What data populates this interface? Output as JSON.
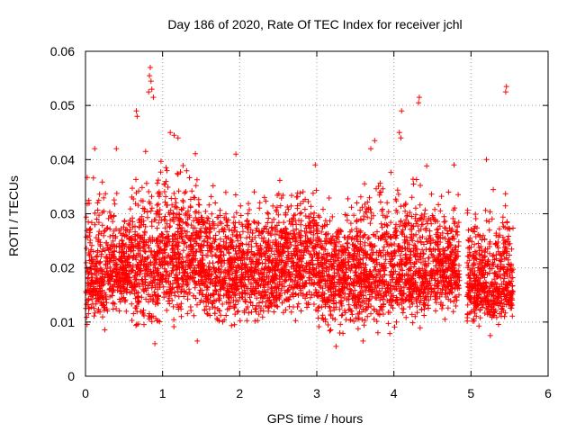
{
  "chart_data": {
    "type": "scatter",
    "title": "Day 186 of 2020, Rate Of TEC Index for receiver jchl",
    "xlabel": "GPS time / hours",
    "ylabel": "ROTI / TECUs",
    "xlim": [
      0,
      6
    ],
    "ylim": [
      0,
      0.06
    ],
    "x_ticks": [
      "0",
      "1",
      "2",
      "3",
      "4",
      "5",
      "6"
    ],
    "y_ticks": [
      "0",
      "0.01",
      "0.02",
      "0.03",
      "0.04",
      "0.05",
      "0.06"
    ],
    "grid": true,
    "marker": "+",
    "color": "#ff0000",
    "data_range_hours": [
      0.0,
      5.55
    ],
    "series": [
      {
        "name": "ROTI",
        "bands": [
          {
            "x": [
              0.0,
              0.25
            ],
            "low": 0.007,
            "high": 0.039,
            "center": 0.018
          },
          {
            "x": [
              0.25,
              0.6
            ],
            "low": 0.01,
            "high": 0.036,
            "center": 0.02
          },
          {
            "x": [
              0.6,
              0.95
            ],
            "low": 0.006,
            "high": 0.04,
            "center": 0.021
          },
          {
            "x": [
              0.95,
              1.5
            ],
            "low": 0.008,
            "high": 0.043,
            "center": 0.022
          },
          {
            "x": [
              1.5,
              2.0
            ],
            "low": 0.007,
            "high": 0.037,
            "center": 0.02
          },
          {
            "x": [
              2.0,
              2.5
            ],
            "low": 0.007,
            "high": 0.037,
            "center": 0.02
          },
          {
            "x": [
              2.5,
              3.0
            ],
            "low": 0.009,
            "high": 0.038,
            "center": 0.021
          },
          {
            "x": [
              3.0,
              3.5
            ],
            "low": 0.006,
            "high": 0.035,
            "center": 0.019
          },
          {
            "x": [
              3.5,
              4.0
            ],
            "low": 0.006,
            "high": 0.041,
            "center": 0.019
          },
          {
            "x": [
              4.0,
              4.5
            ],
            "low": 0.008,
            "high": 0.04,
            "center": 0.019
          },
          {
            "x": [
              4.5,
              4.85
            ],
            "low": 0.009,
            "high": 0.037,
            "center": 0.02
          },
          {
            "x": [
              4.95,
              5.55
            ],
            "low": 0.007,
            "high": 0.036,
            "center": 0.017
          }
        ],
        "highlights": [
          {
            "x": 0.84,
            "y": 0.057
          },
          {
            "x": 0.83,
            "y": 0.0555
          },
          {
            "x": 0.85,
            "y": 0.0545
          },
          {
            "x": 0.86,
            "y": 0.053
          },
          {
            "x": 0.88,
            "y": 0.0515
          },
          {
            "x": 0.82,
            "y": 0.0525
          },
          {
            "x": 0.66,
            "y": 0.049
          },
          {
            "x": 0.67,
            "y": 0.048
          },
          {
            "x": 0.12,
            "y": 0.042
          },
          {
            "x": 0.4,
            "y": 0.042
          },
          {
            "x": 0.78,
            "y": 0.0415
          },
          {
            "x": 1.1,
            "y": 0.045
          },
          {
            "x": 1.15,
            "y": 0.0445
          },
          {
            "x": 1.2,
            "y": 0.044
          },
          {
            "x": 1.95,
            "y": 0.041
          },
          {
            "x": 2.98,
            "y": 0.039
          },
          {
            "x": 3.75,
            "y": 0.0435
          },
          {
            "x": 3.7,
            "y": 0.042
          },
          {
            "x": 4.1,
            "y": 0.049
          },
          {
            "x": 4.07,
            "y": 0.045
          },
          {
            "x": 4.09,
            "y": 0.044
          },
          {
            "x": 4.33,
            "y": 0.0515
          },
          {
            "x": 4.32,
            "y": 0.0505
          },
          {
            "x": 5.46,
            "y": 0.0535
          },
          {
            "x": 5.45,
            "y": 0.0525
          },
          {
            "x": 5.2,
            "y": 0.04
          },
          {
            "x": 4.78,
            "y": 0.039
          },
          {
            "x": 0.9,
            "y": 0.006
          },
          {
            "x": 3.25,
            "y": 0.0055
          },
          {
            "x": 3.6,
            "y": 0.0065
          },
          {
            "x": 1.45,
            "y": 0.0065
          },
          {
            "x": 5.25,
            "y": 0.0075
          }
        ]
      }
    ]
  }
}
